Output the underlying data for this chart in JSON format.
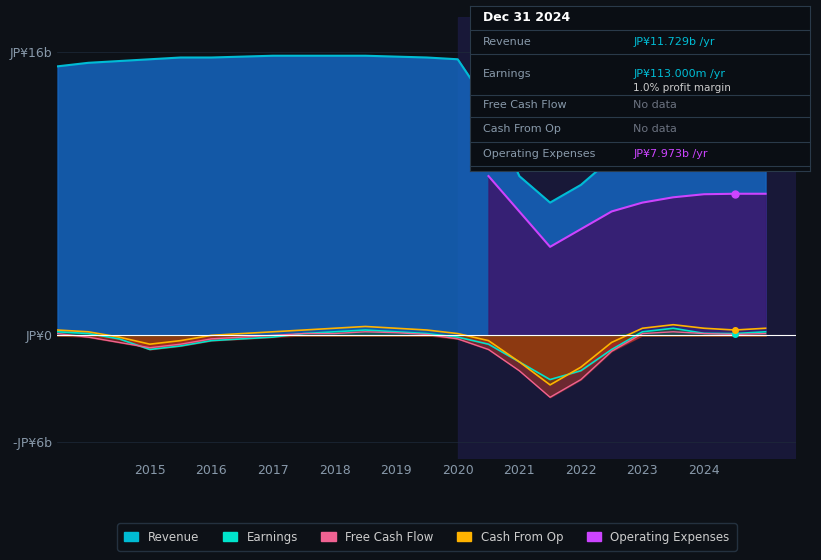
{
  "bg_color": "#0d1117",
  "plot_bg_color": "#0d1117",
  "grid_color": "#1e2a3a",
  "title_box": {
    "date": "Dec 31 2024",
    "rows": [
      {
        "label": "Revenue",
        "value": "JP¥11.729b /yr",
        "value_color": "#00bcd4",
        "extra": null
      },
      {
        "label": "Earnings",
        "value": "JP¥113.000m /yr",
        "value_color": "#00bcd4",
        "extra": "1.0% profit margin"
      },
      {
        "label": "Free Cash Flow",
        "value": "No data",
        "value_color": "#6b7280",
        "extra": null
      },
      {
        "label": "Cash From Op",
        "value": "No data",
        "value_color": "#6b7280",
        "extra": null
      },
      {
        "label": "Operating Expenses",
        "value": "JP¥7.973b /yr",
        "value_color": "#cc44ff",
        "extra": null
      }
    ]
  },
  "ylabel_top": "JP¥16b",
  "ylabel_zero": "JP¥0",
  "ylabel_bottom": "-JP¥6b",
  "x_ticks": [
    2015,
    2016,
    2017,
    2018,
    2019,
    2020,
    2021,
    2022,
    2023,
    2024
  ],
  "x_range": [
    2013.5,
    2025.5
  ],
  "y_range": [
    -7000000000,
    18000000000
  ],
  "highlight_start": 2020,
  "highlight_end": 2025.5,
  "years": [
    2013.5,
    2014,
    2014.5,
    2015,
    2015.5,
    2016,
    2016.5,
    2017,
    2017.5,
    2018,
    2018.5,
    2019,
    2019.5,
    2020,
    2020.5,
    2021,
    2021.5,
    2022,
    2022.5,
    2023,
    2023.5,
    2024,
    2024.5,
    2025
  ],
  "revenue": [
    15200000000,
    15400000000,
    15500000000,
    15600000000,
    15700000000,
    15700000000,
    15750000000,
    15800000000,
    15800000000,
    15800000000,
    15800000000,
    15750000000,
    15700000000,
    15600000000,
    13000000000,
    9000000000,
    7500000000,
    8500000000,
    10000000000,
    11000000000,
    11500000000,
    11729000000,
    11800000000,
    11850000000
  ],
  "earnings": [
    200000000,
    100000000,
    -200000000,
    -800000000,
    -600000000,
    -300000000,
    -200000000,
    -100000000,
    100000000,
    200000000,
    300000000,
    200000000,
    100000000,
    -100000000,
    -500000000,
    -1500000000,
    -2500000000,
    -2000000000,
    -800000000,
    200000000,
    400000000,
    113000000,
    100000000,
    200000000
  ],
  "free_cash_flow": [
    100000000,
    -100000000,
    -400000000,
    -700000000,
    -500000000,
    -200000000,
    -100000000,
    0,
    100000000,
    100000000,
    200000000,
    150000000,
    50000000,
    -200000000,
    -800000000,
    -2000000000,
    -3500000000,
    -2500000000,
    -900000000,
    100000000,
    200000000,
    100000000,
    50000000,
    100000000
  ],
  "cash_from_op": [
    300000000,
    200000000,
    -100000000,
    -500000000,
    -300000000,
    0,
    100000000,
    200000000,
    300000000,
    400000000,
    500000000,
    400000000,
    300000000,
    100000000,
    -300000000,
    -1500000000,
    -2800000000,
    -1800000000,
    -400000000,
    400000000,
    600000000,
    400000000,
    300000000,
    400000000
  ],
  "op_expenses": [
    0,
    0,
    0,
    0,
    0,
    0,
    0,
    0,
    0,
    0,
    0,
    0,
    0,
    0,
    9000000000,
    7000000000,
    5000000000,
    6000000000,
    7000000000,
    7500000000,
    7800000000,
    7973000000,
    8000000000,
    8000000000
  ],
  "legend_items": [
    {
      "label": "Revenue",
      "color": "#00bcd4"
    },
    {
      "label": "Earnings",
      "color": "#00e5cc"
    },
    {
      "label": "Free Cash Flow",
      "color": "#f06292"
    },
    {
      "label": "Cash From Op",
      "color": "#ffb300"
    },
    {
      "label": "Operating Expenses",
      "color": "#cc44ff"
    }
  ]
}
